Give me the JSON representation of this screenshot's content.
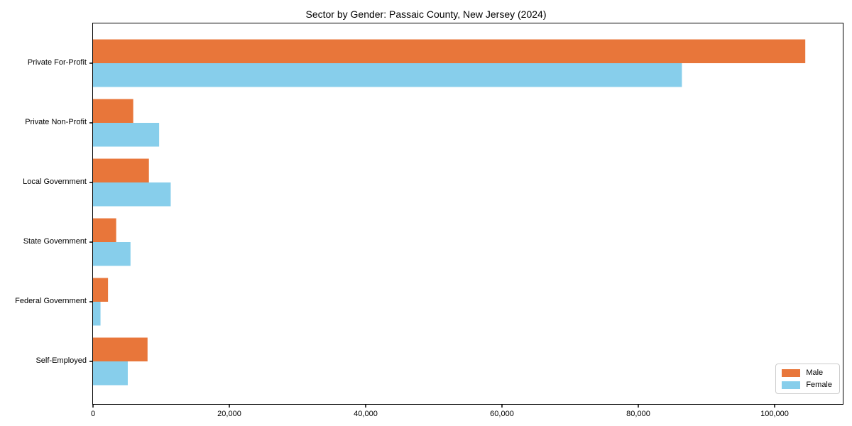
{
  "chart_data": {
    "type": "bar",
    "orientation": "horizontal",
    "title": "Sector by Gender: Passaic County, New Jersey (2024)",
    "categories": [
      "Private For-Profit",
      "Private Non-Profit",
      "Local Government",
      "State Government",
      "Federal Government",
      "Self-Employed"
    ],
    "series": [
      {
        "name": "Male",
        "color": "#e8763a",
        "values": [
          104500,
          5900,
          8200,
          3400,
          2200,
          8000
        ]
      },
      {
        "name": "Female",
        "color": "#87ceeb",
        "values": [
          86400,
          9700,
          11400,
          5500,
          1100,
          5100
        ]
      }
    ],
    "xlabel": "",
    "ylabel": "",
    "xlim": [
      0,
      110000
    ],
    "x_ticks": [
      0,
      20000,
      40000,
      60000,
      80000,
      100000
    ],
    "x_tick_labels": [
      "0",
      "20,000",
      "40,000",
      "60,000",
      "80,000",
      "100,000"
    ],
    "grid": false,
    "legend": {
      "position": "lower right"
    },
    "background_color": "#ffffff",
    "axis_color": "#000000"
  }
}
